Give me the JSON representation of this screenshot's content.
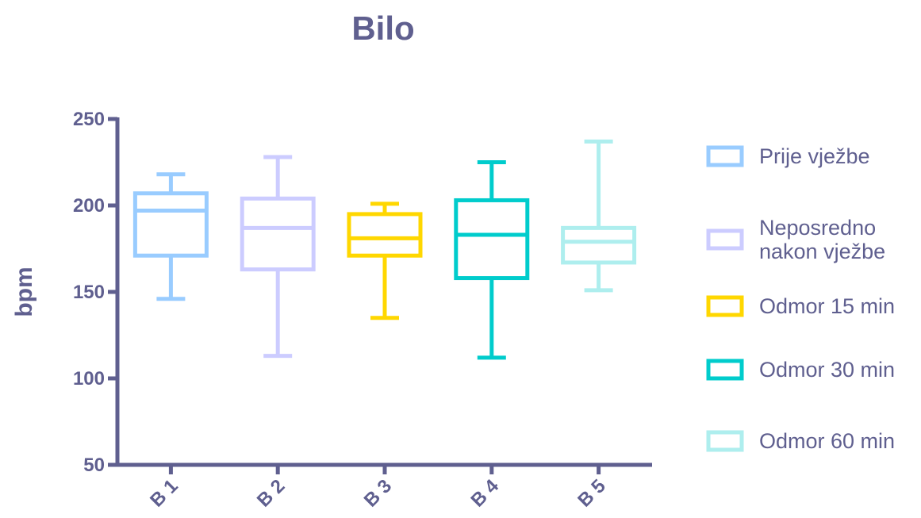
{
  "chart_data": {
    "type": "box",
    "title": "Bilo",
    "ylabel": "bpm",
    "xlabel": "",
    "ylim": [
      50,
      250
    ],
    "yticks": [
      50,
      100,
      150,
      200,
      250
    ],
    "categories": [
      "B 1",
      "B 2",
      "B 3",
      "B 4",
      "B 5"
    ],
    "series": [
      {
        "name": "Prije vježbe",
        "color": "#99CCFF",
        "min": 146,
        "q1": 171,
        "median": 197,
        "q3": 207,
        "max": 218
      },
      {
        "name": "Neposredno nakon vježbe",
        "color": "#CCCCFF",
        "min": 113,
        "q1": 163,
        "median": 187,
        "q3": 204,
        "max": 228
      },
      {
        "name": "Odmor 15 min",
        "color": "#FFD700",
        "min": 135,
        "q1": 171,
        "median": 181,
        "q3": 195,
        "max": 201
      },
      {
        "name": "Odmor 30 min",
        "color": "#00CCCC",
        "min": 112,
        "q1": 158,
        "median": 183,
        "q3": 203,
        "max": 225
      },
      {
        "name": "Odmor 60 min",
        "color": "#AEEEEE",
        "min": 151,
        "q1": 167,
        "median": 179,
        "q3": 187,
        "max": 237
      }
    ],
    "legend_position": "right",
    "grid": false,
    "colors": {
      "axis": "#5F5F8F",
      "text": "#5F5F8F"
    }
  }
}
